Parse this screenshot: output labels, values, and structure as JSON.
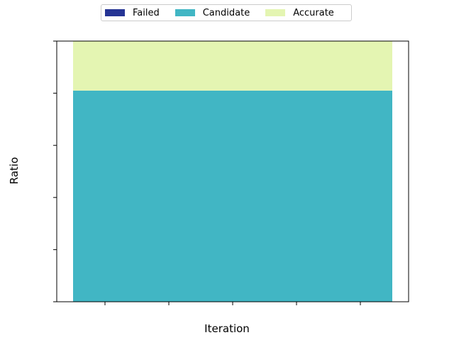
{
  "chart_data": {
    "type": "bar",
    "stacked": true,
    "categories": [
      ""
    ],
    "series": [
      {
        "name": "Failed",
        "values": [
          0.0
        ],
        "color": "#253494"
      },
      {
        "name": "Candidate",
        "values": [
          0.81
        ],
        "color": "#41b6c4"
      },
      {
        "name": "Accurate",
        "values": [
          0.19
        ],
        "color": "#e4f5b2"
      }
    ],
    "title": "",
    "xlabel": "Iteration",
    "ylabel": "Ratio",
    "ylim": [
      0,
      1
    ],
    "legend_position": "top-center",
    "grid": false
  }
}
